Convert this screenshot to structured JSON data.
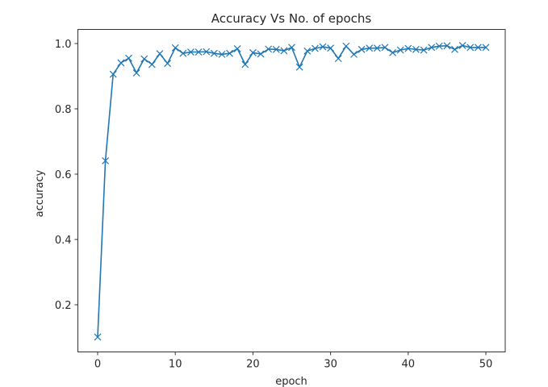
{
  "chart_data": {
    "type": "line",
    "title": "Accuracy Vs No. of epochs",
    "xlabel": "epoch",
    "ylabel": "accuracy",
    "marker": "x",
    "line_color": "#1f77b4",
    "xlim": [
      -2.5,
      52.5
    ],
    "ylim": [
      0.055,
      1.045
    ],
    "xticks": [
      0,
      10,
      20,
      30,
      40,
      50
    ],
    "xtick_labels": [
      "0",
      "10",
      "20",
      "30",
      "40",
      "50"
    ],
    "yticks": [
      0.2,
      0.4,
      0.6,
      0.8,
      1.0
    ],
    "ytick_labels": [
      "0.2",
      "0.4",
      "0.6",
      "0.8",
      "1.0"
    ],
    "grid": false,
    "legend": null,
    "x": [
      0,
      1,
      2,
      3,
      4,
      5,
      6,
      7,
      8,
      9,
      10,
      11,
      12,
      13,
      14,
      15,
      16,
      17,
      18,
      19,
      20,
      21,
      22,
      23,
      24,
      25,
      26,
      27,
      28,
      29,
      30,
      31,
      32,
      33,
      34,
      35,
      36,
      37,
      38,
      39,
      40,
      41,
      42,
      43,
      44,
      45,
      46,
      47,
      48,
      49,
      50
    ],
    "series": [
      {
        "name": "accuracy",
        "values": [
          0.101,
          0.641,
          0.906,
          0.941,
          0.955,
          0.91,
          0.953,
          0.936,
          0.969,
          0.939,
          0.987,
          0.97,
          0.974,
          0.974,
          0.975,
          0.97,
          0.967,
          0.97,
          0.984,
          0.936,
          0.972,
          0.968,
          0.983,
          0.982,
          0.978,
          0.988,
          0.928,
          0.977,
          0.985,
          0.99,
          0.986,
          0.954,
          0.992,
          0.967,
          0.982,
          0.986,
          0.986,
          0.988,
          0.972,
          0.98,
          0.985,
          0.982,
          0.98,
          0.988,
          0.992,
          0.993,
          0.982,
          0.994,
          0.988,
          0.988,
          0.988
        ]
      }
    ]
  }
}
